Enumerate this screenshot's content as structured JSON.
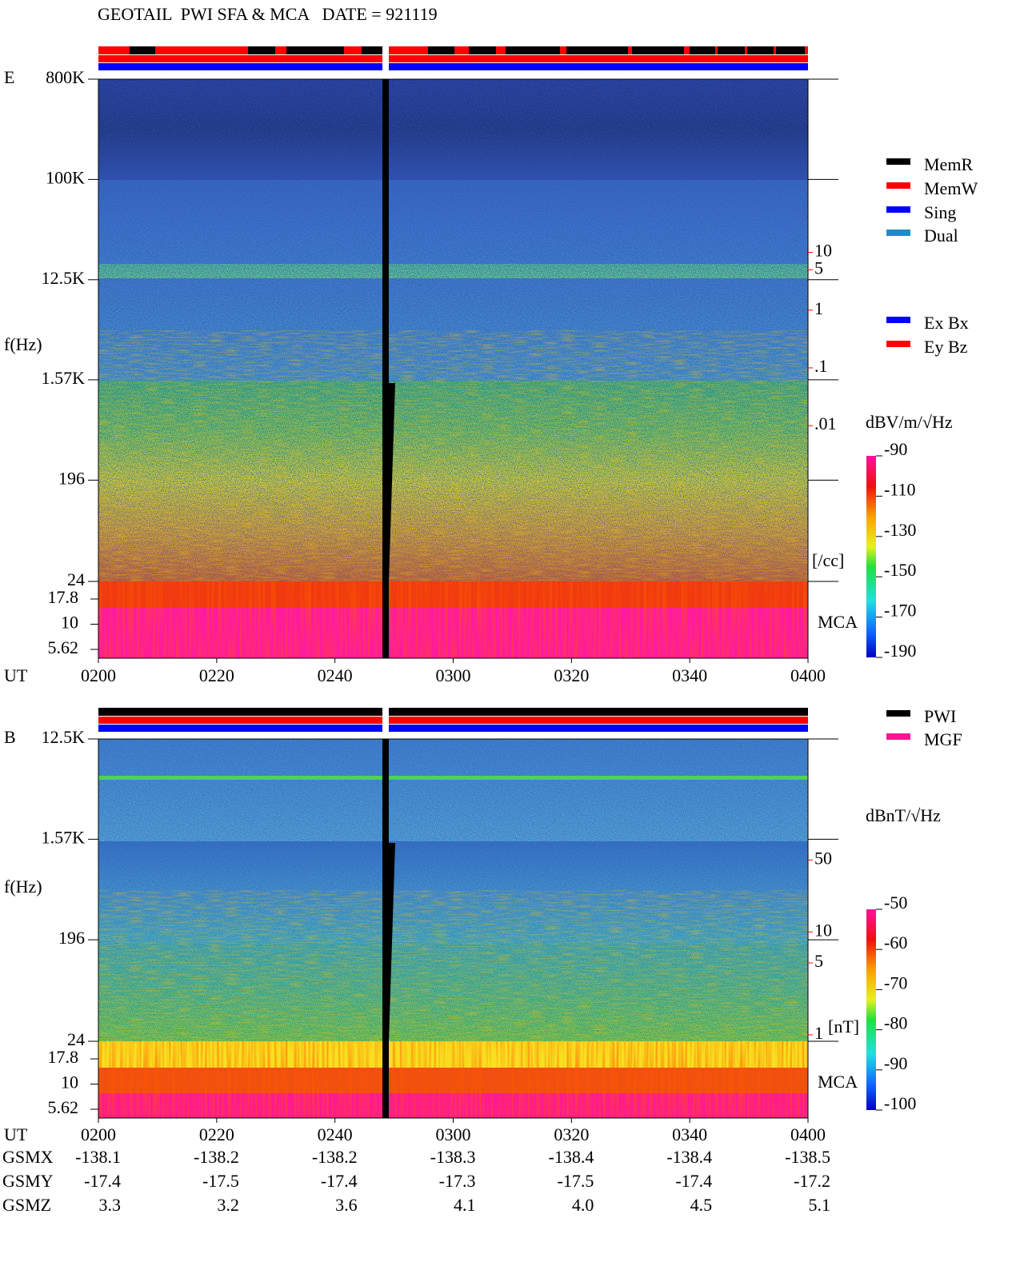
{
  "title": "GEOTAIL  PWI SFA & MCA   DATE = 921119",
  "chart_data": [
    {
      "type": "spectrogram",
      "panel_label": "E",
      "ylabel": "f(Hz)",
      "yscale": "log",
      "ylim": [
        24,
        800000
      ],
      "yticks": [
        {
          "value": 800000,
          "label": "800K"
        },
        {
          "value": 100000,
          "label": "100K"
        },
        {
          "value": 12500,
          "label": "12.5K"
        },
        {
          "value": 1570,
          "label": "1.57K"
        },
        196,
        24
      ],
      "mca_label": "MCA",
      "mca_ticks": [
        17.8,
        10,
        5.62
      ],
      "y2scale": "log",
      "y2lim": [
        2e-05,
        10000
      ],
      "y2ticks": [
        10,
        5,
        1,
        {
          "value": 0.1,
          "label": ".1"
        },
        {
          "value": 0.01,
          "label": ".01"
        }
      ],
      "y2label": "[/cc]",
      "y2color": "#ff0000",
      "colorbar_label": "dBV/m/√Hz",
      "clim": [
        -190,
        -90
      ],
      "cticks": [
        -90,
        -110,
        -130,
        -150,
        -170,
        -190
      ],
      "xlabel": "UT",
      "xticks": [
        "0200",
        "0220",
        "0240",
        "0300",
        "0320",
        "0340",
        "0400"
      ],
      "legend": [
        {
          "name": "MemR",
          "color": "#000000"
        },
        {
          "name": "MemW",
          "color": "#ff0000"
        },
        {
          "name": "Sing",
          "color": "#0000ff"
        },
        {
          "name": "Dual",
          "color": "#1e8cc8"
        }
      ],
      "legend2": [
        {
          "name": "Ex Bx",
          "color": "#0000ff"
        },
        {
          "name": "Ey Bz",
          "color": "#ff0000"
        }
      ]
    },
    {
      "type": "spectrogram",
      "panel_label": "B",
      "ylabel": "f(Hz)",
      "yscale": "log",
      "ylim": [
        24,
        12500
      ],
      "yticks": [
        {
          "value": 12500,
          "label": "12.5K"
        },
        {
          "value": 1570,
          "label": "1.57K"
        },
        196,
        24
      ],
      "mca_label": "MCA",
      "mca_ticks": [
        17.8,
        10,
        5.62
      ],
      "y2scale": "log",
      "y2lim": [
        0.93,
        750
      ],
      "y2ticks": [
        50,
        10,
        5,
        1
      ],
      "y2label": "[nT]",
      "y2color": "#ff0000",
      "colorbar_label": "dBnT/√Hz",
      "clim": [
        -100,
        -50
      ],
      "cticks": [
        -50,
        -60,
        -70,
        -80,
        -90,
        -100
      ],
      "xlabel": "UT",
      "xticks": [
        "0200",
        "0220",
        "0240",
        "0300",
        "0320",
        "0340",
        "0400"
      ],
      "legend": [
        {
          "name": "PWI",
          "color": "#000000"
        },
        {
          "name": "MGF",
          "color": "#ff1493"
        }
      ]
    }
  ],
  "orbit": {
    "rows": [
      {
        "name": "GSMX",
        "values": [
          "-138.1",
          "-138.2",
          "-138.2",
          "-138.3",
          "-138.4",
          "-138.4",
          "-138.5"
        ]
      },
      {
        "name": "GSMY",
        "values": [
          "-17.4",
          "-17.5",
          "-17.4",
          "-17.3",
          "-17.5",
          "-17.4",
          "-17.2"
        ]
      },
      {
        "name": "GSMZ",
        "values": [
          "3.3",
          "3.2",
          "3.6",
          "4.1",
          "4.0",
          "4.5",
          "5.1"
        ]
      }
    ]
  }
}
